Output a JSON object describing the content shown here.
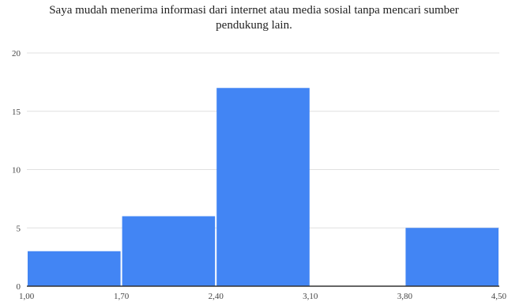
{
  "chart_data": {
    "type": "bar",
    "title_lines": [
      "Saya mudah menerima informasi dari internet atau media sosial tanpa mencari sumber",
      "pendukung lain."
    ],
    "bin_edges": [
      "1,00",
      "1,70",
      "2,40",
      "3,10",
      "3,80",
      "4,50"
    ],
    "values": [
      3,
      6,
      17,
      0,
      5
    ],
    "y_ticks": [
      "0",
      "5",
      "10",
      "15",
      "20"
    ],
    "ylim": [
      0,
      20
    ],
    "grid": true,
    "colors": {
      "bar": "#4285F4",
      "grid": "#e0e0e0",
      "axis": "#333333"
    }
  }
}
